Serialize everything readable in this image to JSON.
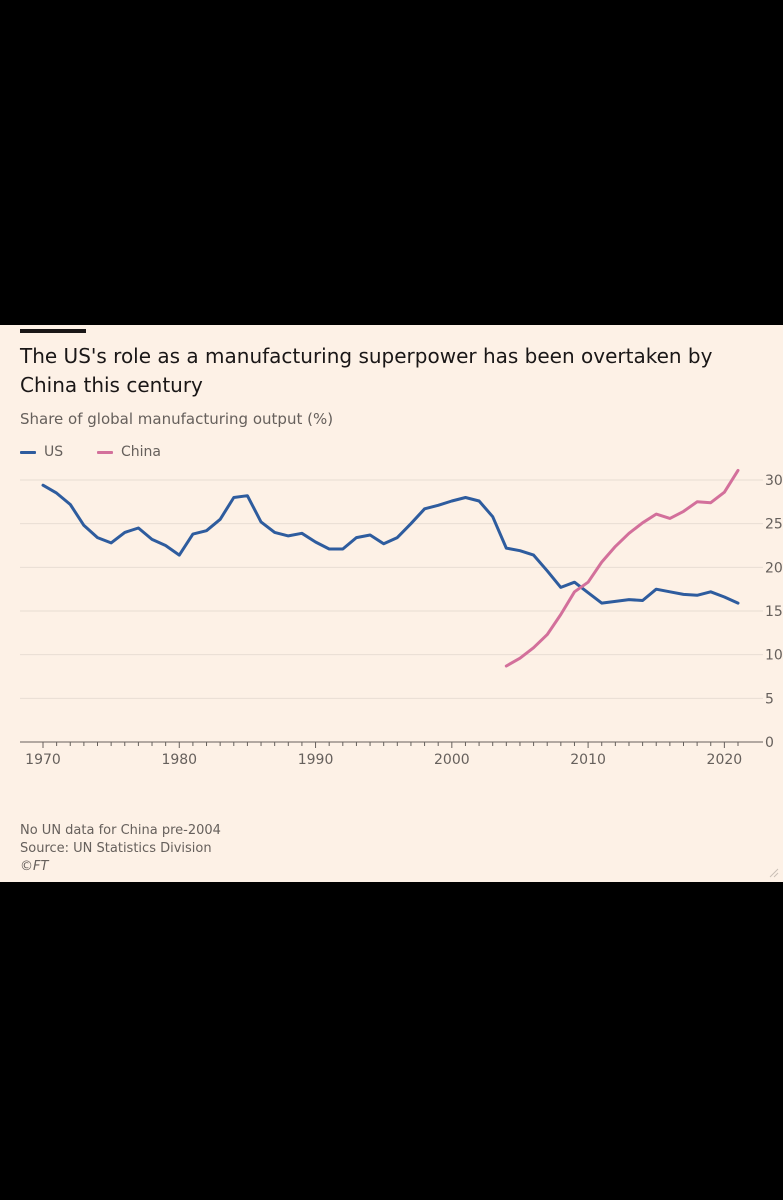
{
  "colors": {
    "background": "#fdf1e6",
    "us": "#2e5c9e",
    "china": "#d3709b",
    "grid": "#e8ddd3",
    "axis": "#66605c",
    "text": "#1a1717"
  },
  "chart_data": {
    "type": "line",
    "title": "The US's role as a manufacturing superpower has been overtaken by China this century",
    "subtitle": "Share of global manufacturing output (%)",
    "xlabel": "",
    "ylabel": "",
    "xlim": [
      1970,
      2021
    ],
    "ylim": [
      0,
      30
    ],
    "x_ticks": [
      1970,
      1980,
      1990,
      2000,
      2010,
      2020
    ],
    "y_ticks": [
      0,
      5,
      10,
      15,
      20,
      25,
      30
    ],
    "y_axis_position": "right",
    "grid": true,
    "legend_position": "top-left",
    "series": [
      {
        "name": "US",
        "color": "#2e5c9e",
        "x": [
          1970,
          1971,
          1972,
          1973,
          1974,
          1975,
          1976,
          1977,
          1978,
          1979,
          1980,
          1981,
          1982,
          1983,
          1984,
          1985,
          1986,
          1987,
          1988,
          1989,
          1990,
          1991,
          1992,
          1993,
          1994,
          1995,
          1996,
          1997,
          1998,
          1999,
          2000,
          2001,
          2002,
          2003,
          2004,
          2005,
          2006,
          2007,
          2008,
          2009,
          2010,
          2011,
          2012,
          2013,
          2014,
          2015,
          2016,
          2017,
          2018,
          2019,
          2020,
          2021
        ],
        "y": [
          29.4,
          28.5,
          27.2,
          24.8,
          23.4,
          22.8,
          24.0,
          24.5,
          23.2,
          22.5,
          21.4,
          23.8,
          24.2,
          25.5,
          28.0,
          28.2,
          25.2,
          24.0,
          23.6,
          23.9,
          22.9,
          22.1,
          22.1,
          23.4,
          23.7,
          22.7,
          23.4,
          25.0,
          26.7,
          27.1,
          27.6,
          28.0,
          27.6,
          25.8,
          22.2,
          21.9,
          21.4,
          19.6,
          17.7,
          18.3,
          17.1,
          15.9,
          16.1,
          16.3,
          16.2,
          17.5,
          17.2,
          16.9,
          16.8,
          17.2,
          16.6,
          15.9
        ]
      },
      {
        "name": "China",
        "color": "#d3709b",
        "x": [
          2004,
          2005,
          2006,
          2007,
          2008,
          2009,
          2010,
          2011,
          2012,
          2013,
          2014,
          2015,
          2016,
          2017,
          2018,
          2019,
          2020,
          2021
        ],
        "y": [
          8.7,
          9.6,
          10.8,
          12.3,
          14.6,
          17.2,
          18.3,
          20.6,
          22.4,
          23.9,
          25.1,
          26.1,
          25.6,
          26.4,
          27.5,
          27.4,
          28.6,
          31.1
        ]
      }
    ],
    "notes": [
      "No UN data for China pre-2004",
      "Source: UN Statistics Division",
      "©FT"
    ]
  }
}
